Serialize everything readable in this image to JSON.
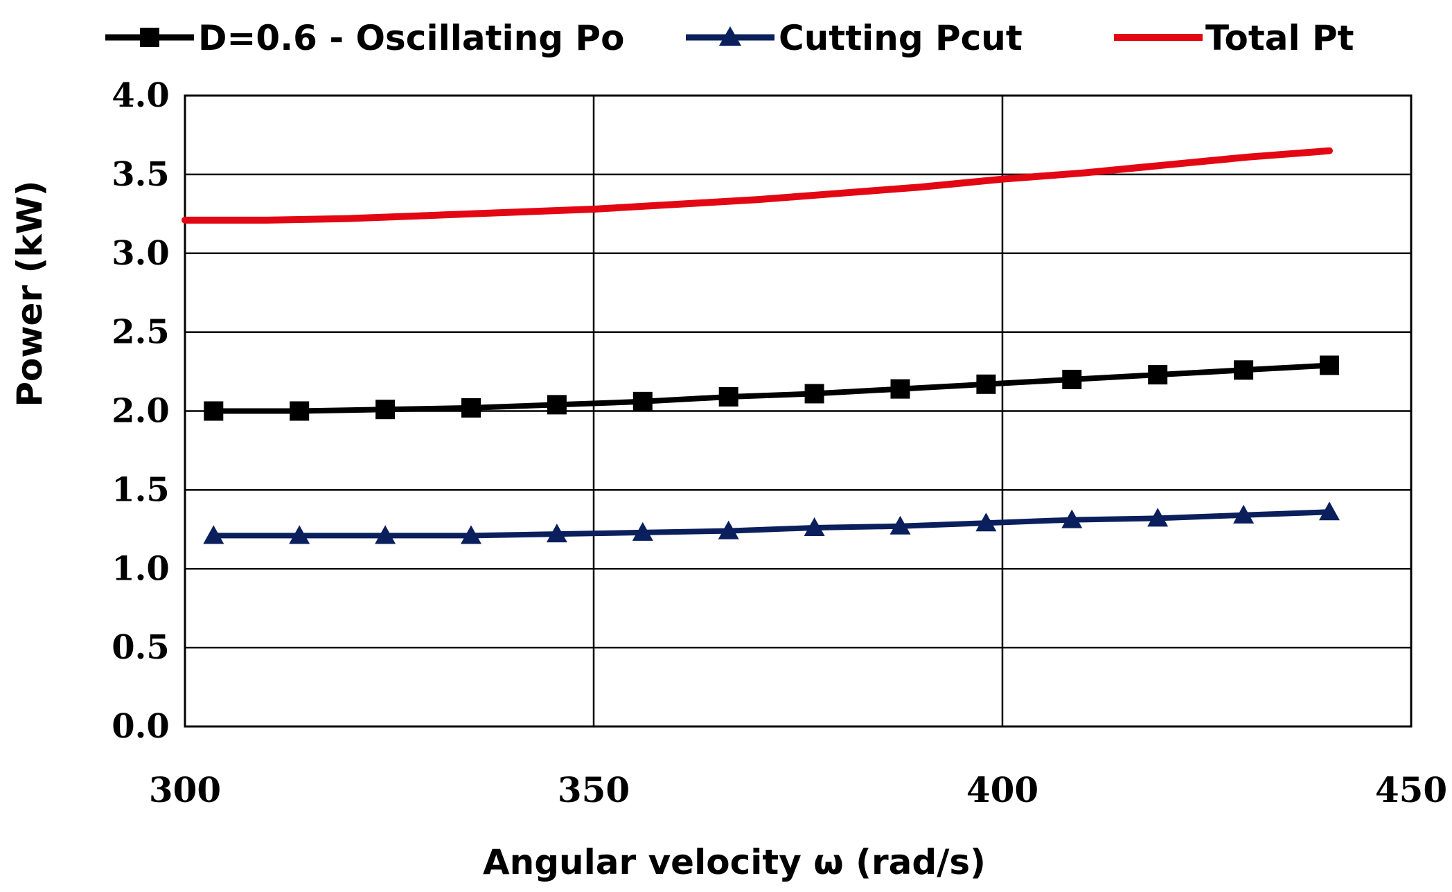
{
  "chart_data": {
    "type": "line",
    "title": "",
    "xlabel": "Angular velocity ω (rad/s)",
    "ylabel": "Power (kW)",
    "xlim": [
      300,
      450
    ],
    "ylim": [
      0,
      4.0
    ],
    "xticks": [
      300,
      350,
      400,
      450
    ],
    "yticks": [
      0,
      0.5,
      1.0,
      1.5,
      2.0,
      2.5,
      3.0,
      3.5,
      4.0
    ],
    "ytick_labels": [
      "0.0",
      "0.5",
      "1.0",
      "1.5",
      "2.0",
      "2.5",
      "3.0",
      "3.5",
      "4.0"
    ],
    "xtick_labels": [
      "300",
      "350",
      "400",
      "450"
    ],
    "grid": true,
    "legend_position": "top",
    "series": [
      {
        "name": "D=0.6 - Oscillating Po",
        "color": "#000000",
        "marker": "square",
        "x": [
          303.5,
          314,
          324.5,
          335,
          345.5,
          356,
          366.5,
          377,
          387.5,
          398,
          408.5,
          419,
          429.5,
          440
        ],
        "y": [
          2.0,
          2.0,
          2.01,
          2.02,
          2.04,
          2.06,
          2.09,
          2.11,
          2.14,
          2.17,
          2.2,
          2.23,
          2.26,
          2.29
        ]
      },
      {
        "name": "Cutting Pcut",
        "color": "#0a1f5c",
        "marker": "triangle",
        "x": [
          303.5,
          314,
          324.5,
          335,
          345.5,
          356,
          366.5,
          377,
          387.5,
          398,
          408.5,
          419,
          429.5,
          440
        ],
        "y": [
          1.21,
          1.21,
          1.21,
          1.21,
          1.22,
          1.23,
          1.24,
          1.26,
          1.27,
          1.29,
          1.31,
          1.32,
          1.34,
          1.36
        ]
      },
      {
        "name": "Total Pt",
        "color": "#e30613",
        "marker": "none",
        "x": [
          300,
          310,
          320,
          330,
          340,
          350,
          360,
          370,
          380,
          390,
          400,
          410,
          420,
          430,
          440
        ],
        "y": [
          3.21,
          3.21,
          3.22,
          3.24,
          3.26,
          3.28,
          3.31,
          3.34,
          3.38,
          3.42,
          3.47,
          3.51,
          3.56,
          3.61,
          3.65
        ]
      }
    ]
  }
}
